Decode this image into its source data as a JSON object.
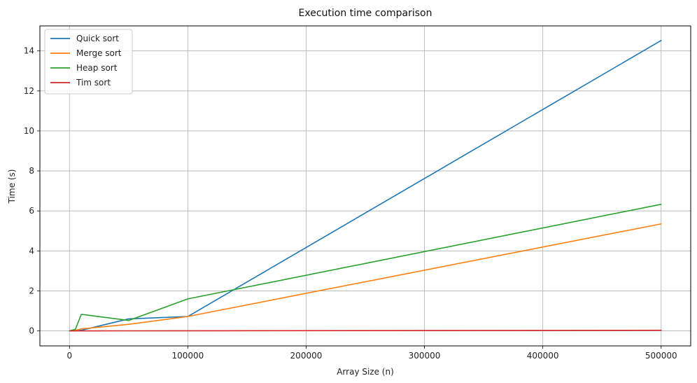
{
  "chart_data": {
    "type": "line",
    "title": "Execution time comparison",
    "xlabel": "Array Size (n)",
    "ylabel": "Time (s)",
    "x": [
      100,
      5000,
      10000,
      50000,
      100000,
      500000
    ],
    "xlim": [
      -25000,
      525000
    ],
    "ylim": [
      -0.75,
      15.25
    ],
    "xticks": [
      0,
      100000,
      200000,
      300000,
      400000,
      500000
    ],
    "yticks": [
      0,
      2,
      4,
      6,
      8,
      10,
      12,
      14
    ],
    "grid": true,
    "legend_position": "top-left",
    "series": [
      {
        "name": "Quick sort",
        "color": "#1f77b4",
        "values": [
          0.0002,
          0.01,
          0.03,
          0.6,
          0.72,
          14.52
        ]
      },
      {
        "name": "Merge sort",
        "color": "#ff7f0e",
        "values": [
          0.0003,
          0.03,
          0.1,
          0.33,
          0.72,
          5.35
        ]
      },
      {
        "name": "Heap sort",
        "color": "#2ca02c",
        "values": [
          0.0004,
          0.08,
          0.83,
          0.52,
          1.6,
          6.33
        ]
      },
      {
        "name": "Tim sort",
        "color": "#d62728",
        "values": [
          0.0,
          0.0005,
          0.001,
          0.003,
          0.006,
          0.03
        ]
      }
    ]
  }
}
